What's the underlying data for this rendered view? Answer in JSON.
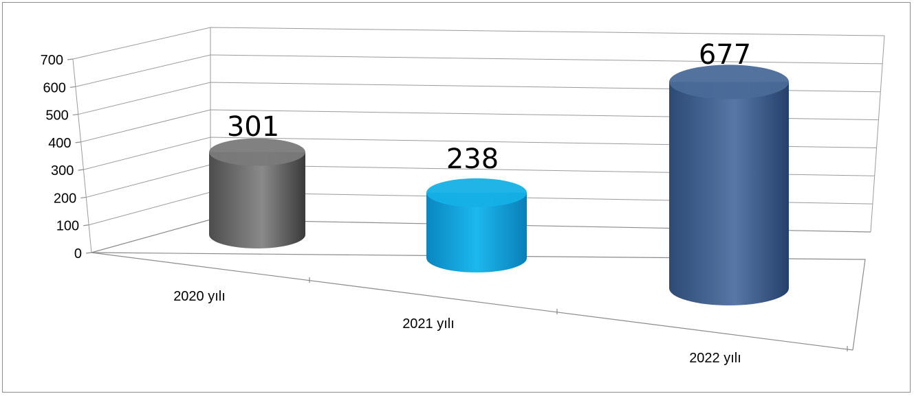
{
  "chart_data": {
    "type": "bar",
    "style": "3d-cylinder",
    "categories": [
      "2020 yılı",
      "2021 yılı",
      "2022 yılı"
    ],
    "values": [
      301,
      238,
      677
    ],
    "data_labels": [
      "301",
      "238",
      "677"
    ],
    "colors": [
      "#7a7a7a",
      "#14b0e6",
      "#4a6a98"
    ],
    "ylim": [
      0,
      700
    ],
    "yticks": [
      0,
      100,
      200,
      300,
      400,
      500,
      600,
      700
    ],
    "ytick_labels": [
      "0",
      "100",
      "200",
      "300",
      "400",
      "500",
      "600",
      "700"
    ],
    "grid": true,
    "legend": "none",
    "title": "",
    "xlabel": "",
    "ylabel": ""
  }
}
